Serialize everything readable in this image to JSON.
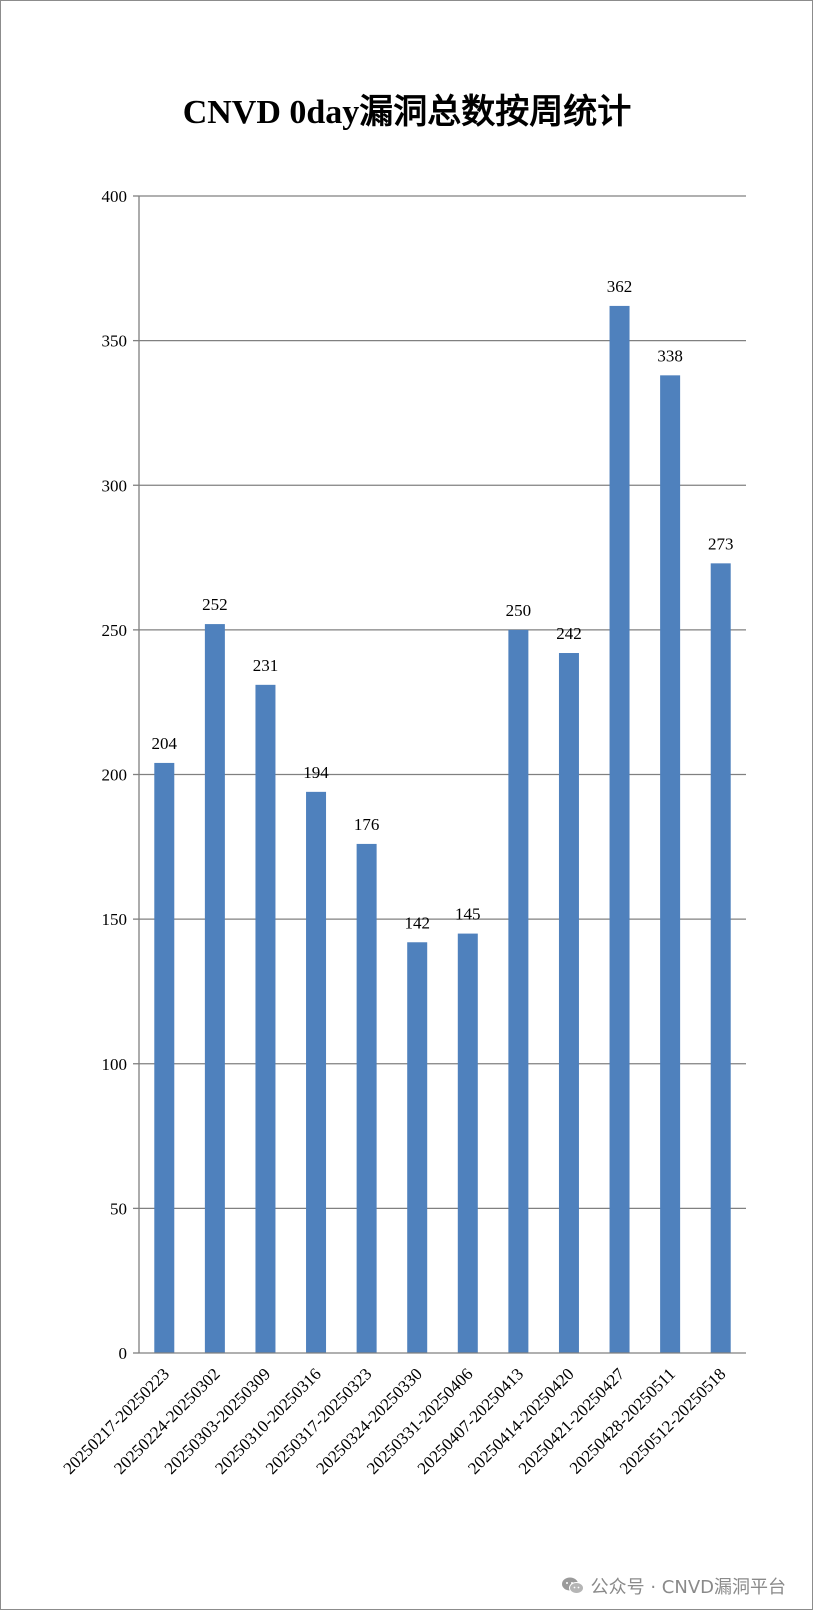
{
  "chart_data": {
    "type": "bar",
    "title": "CNVD 0day漏洞总数按周统计",
    "categories": [
      "20250217-20250223",
      "20250224-20250302",
      "20250303-20250309",
      "20250310-20250316",
      "20250317-20250323",
      "20250324-20250330",
      "20250331-20250406",
      "20250407-20250413",
      "20250414-20250420",
      "20250421-20250427",
      "20250428-20250511",
      "20250512-20250518"
    ],
    "values": [
      204,
      252,
      231,
      194,
      176,
      142,
      145,
      250,
      242,
      362,
      338,
      273
    ],
    "xlabel": "",
    "ylabel": "",
    "ylim": [
      0,
      400
    ],
    "yticks": [
      0,
      50,
      100,
      150,
      200,
      250,
      300,
      350,
      400
    ],
    "grid": true,
    "legend": "none",
    "data_labels": true,
    "bar_color": "#4f81bd"
  },
  "watermark": {
    "icon": "wechat-icon",
    "text": "公众号 · CNVD漏洞平台"
  }
}
